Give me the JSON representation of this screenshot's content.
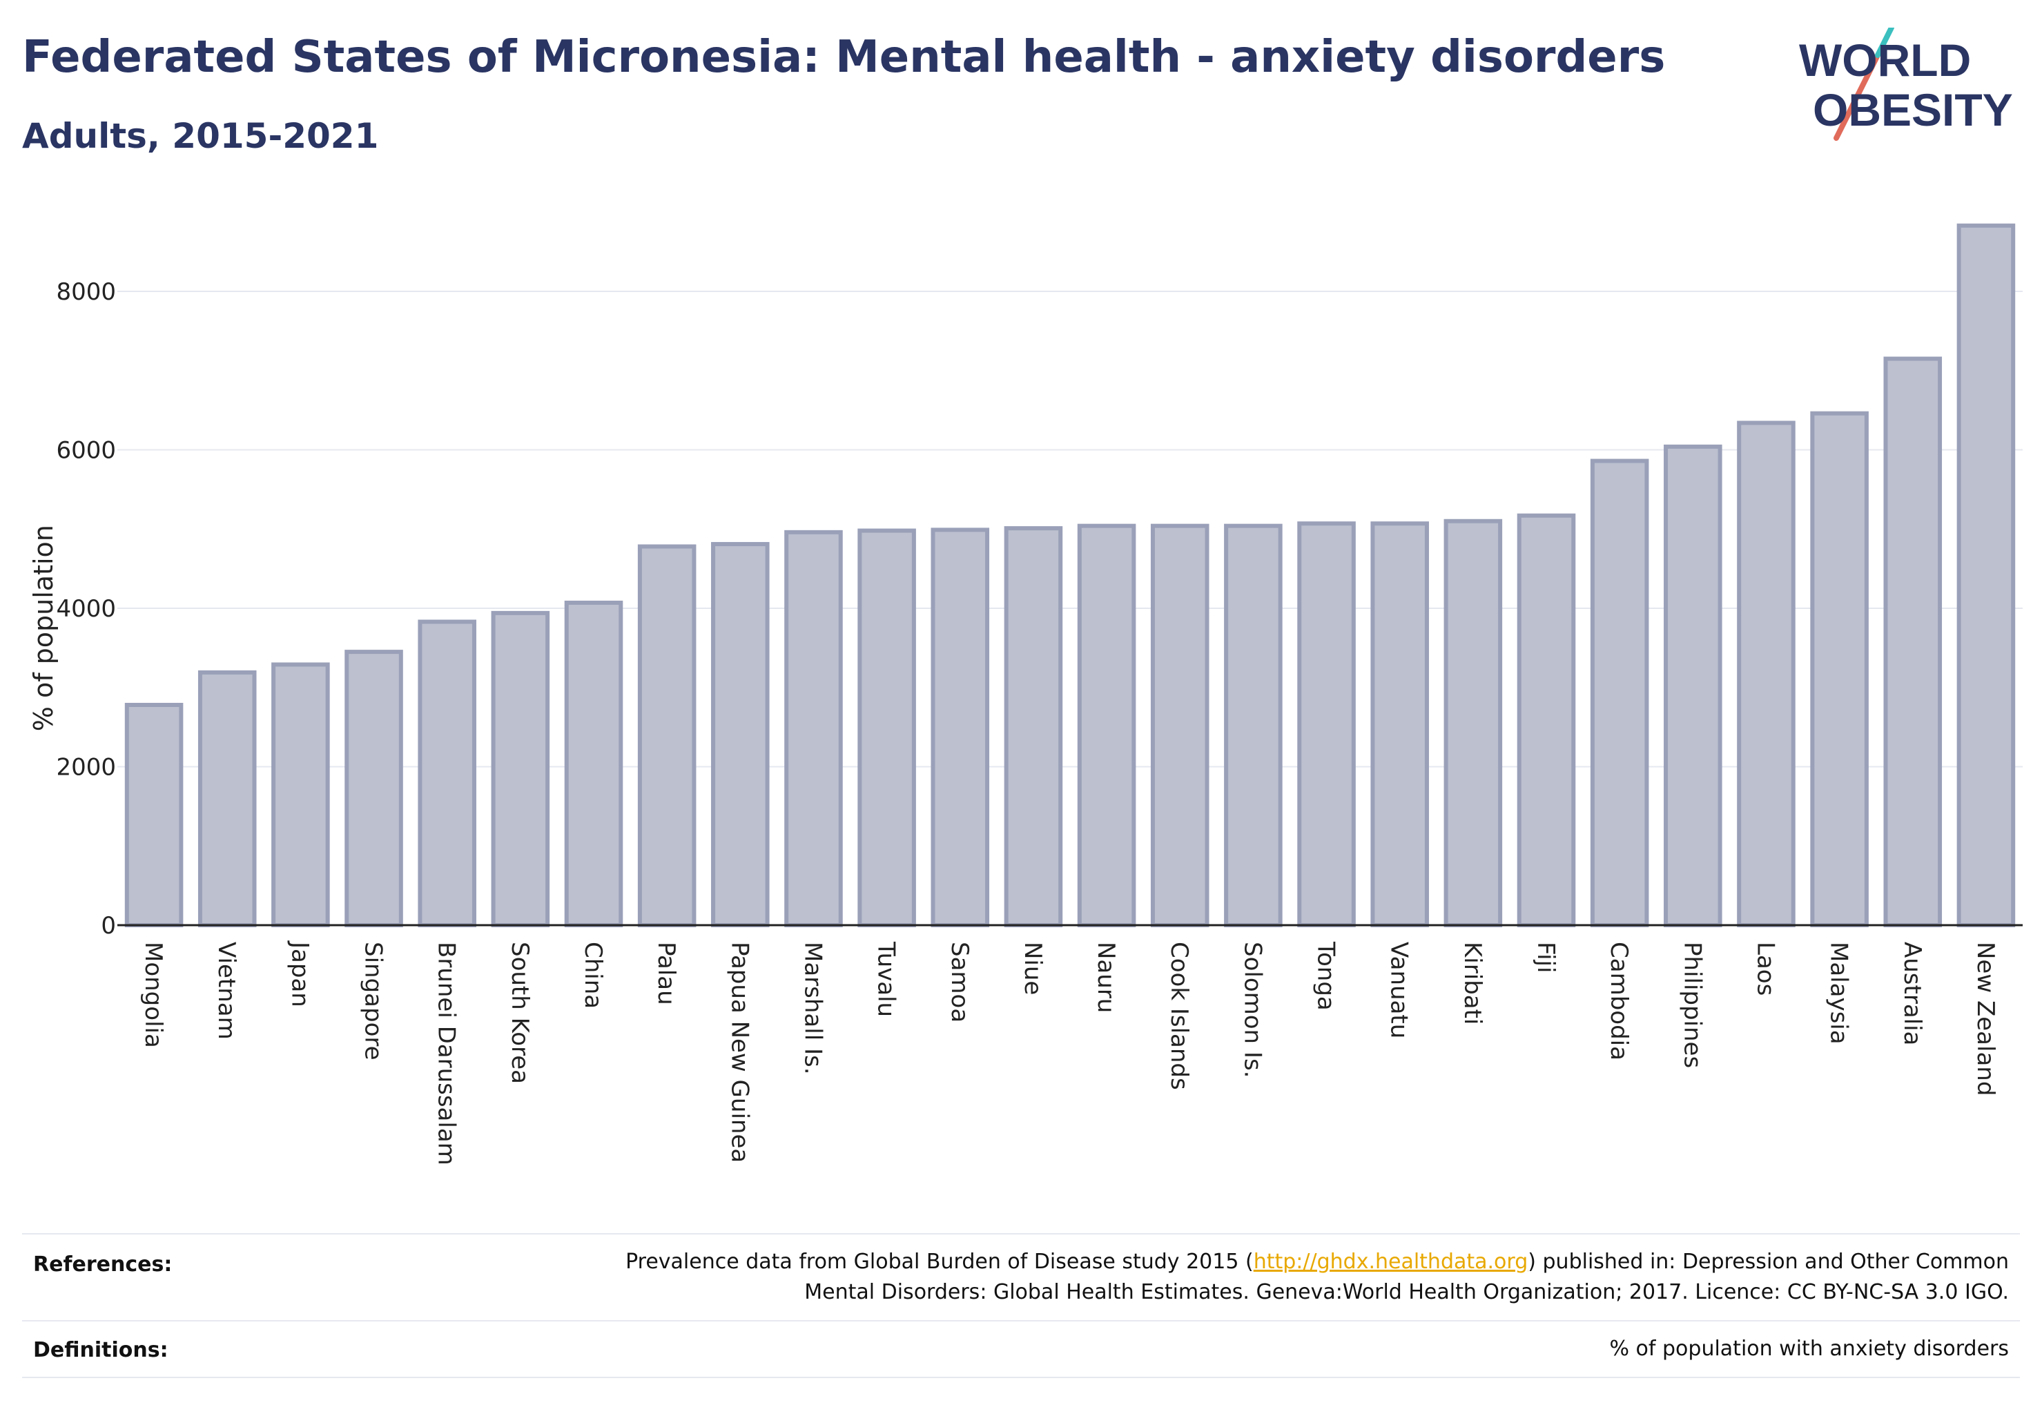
{
  "header": {
    "title": "Federated States of Micronesia: Mental health - anxiety disorders",
    "subtitle": "Adults, 2015-2021"
  },
  "logo": {
    "line1": "WORLD",
    "line2": "OBESITY",
    "text_color": "#2a3563",
    "slash_colors": [
      "#e06b5b",
      "#3bbfbf"
    ]
  },
  "colors": {
    "bar_fill": "#bcc0cf",
    "bar_stroke": "#9aa0b8",
    "grid": "#e6e8f0",
    "axis": "#222222"
  },
  "chart_data": {
    "type": "bar",
    "ylabel": "% of population",
    "ylim": [
      0,
      9000
    ],
    "yticks": [
      0,
      2000,
      4000,
      6000,
      8000
    ],
    "grid": true,
    "categories": [
      "Mongolia",
      "Vietnam",
      "Japan",
      "Singapore",
      "Brunei Darussalam",
      "South Korea",
      "China",
      "Palau",
      "Papua New Guinea",
      "Marshall Is.",
      "Tuvalu",
      "Samoa",
      "Niue",
      "Nauru",
      "Cook Islands",
      "Solomon Is.",
      "Tonga",
      "Vanuatu",
      "Kiribati",
      "Fiji",
      "Cambodia",
      "Philippines",
      "Laos",
      "Malaysia",
      "Australia",
      "New Zealand"
    ],
    "values": [
      2780,
      3190,
      3290,
      3450,
      3830,
      3940,
      4070,
      4780,
      4810,
      4960,
      4980,
      4990,
      5010,
      5040,
      5040,
      5040,
      5070,
      5070,
      5100,
      5170,
      5860,
      6040,
      6340,
      6460,
      7150,
      8830
    ]
  },
  "references": {
    "label": "References:",
    "text_before": "Prevalence data from Global Burden of Disease study 2015 (",
    "link": "http://ghdx.healthdata.org",
    "text_after": ") published in: Depression and Other Common",
    "line2": "Mental Disorders: Global Health Estimates. Geneva:World Health Organization; 2017. Licence: CC BY-NC-SA 3.0 IGO."
  },
  "definitions": {
    "label": "Definitions:",
    "text": "% of population with anxiety disorders"
  }
}
